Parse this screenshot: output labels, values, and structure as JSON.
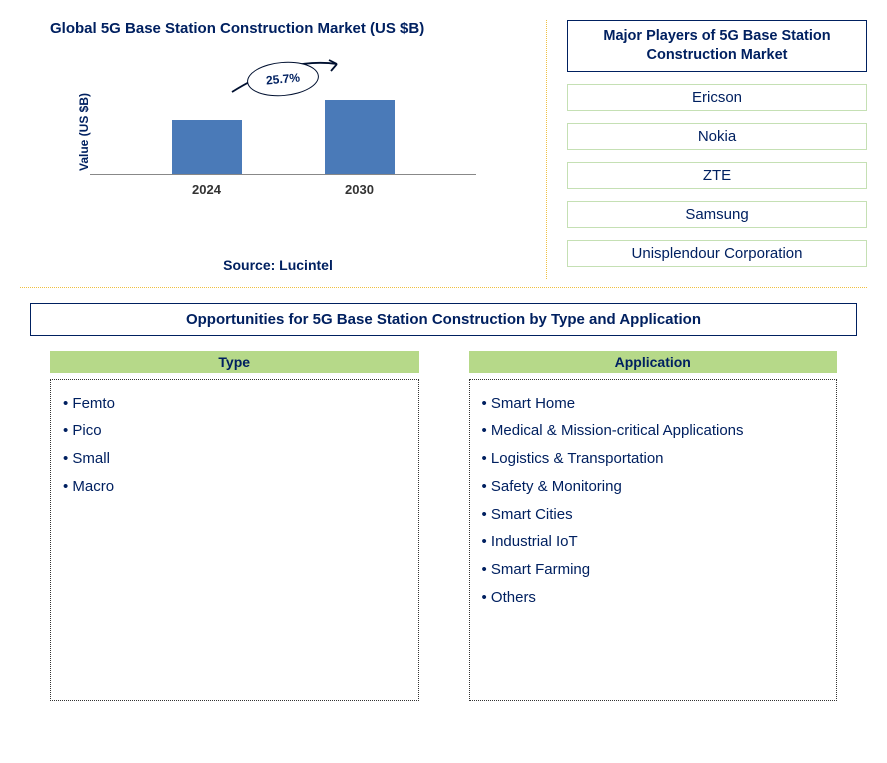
{
  "chart": {
    "title": "Global 5G Base Station Construction Market (US $B)",
    "y_axis_label": "Value (US $B)",
    "type": "bar",
    "bar_color": "#4a7ab8",
    "axis_line_color": "#888",
    "bars": [
      {
        "label": "2024",
        "height_pct": 60
      },
      {
        "label": "2030",
        "height_pct": 82
      }
    ],
    "growth_label": "25.7%",
    "ellipse_border_color": "#001030",
    "text_color": "#002060"
  },
  "source": "Source: Lucintel",
  "players": {
    "title": "Major Players of 5G Base Station Construction Market",
    "border_color": "#c5e0b4",
    "items": [
      "Ericson",
      "Nokia",
      "ZTE",
      "Samsung",
      "Unisplendour Corporation"
    ]
  },
  "opportunities": {
    "title": "Opportunities for 5G Base Station Construction by Type and Application",
    "header_bg": "#b6d989",
    "columns": [
      {
        "header": "Type",
        "items": [
          "Femto",
          "Pico",
          "Small",
          "Macro"
        ]
      },
      {
        "header": "Application",
        "items": [
          "Smart Home",
          "Medical & Mission-critical Applications",
          "Logistics & Transportation",
          "Safety & Monitoring",
          "Smart Cities",
          "Industrial IoT",
          "Smart Farming",
          "Others"
        ]
      }
    ]
  }
}
